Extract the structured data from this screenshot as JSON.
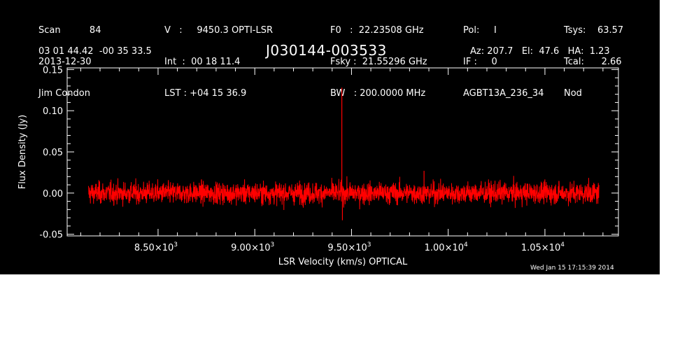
{
  "header": {
    "col1": [
      "Scan          84",
      "2013-12-30",
      "Jim Condon"
    ],
    "col2": [
      "V   :     9450.3 OPTI-LSR",
      "Int  :  00 18 11.4",
      "LST : +04 15 36.9"
    ],
    "col3": [
      "F0   :  22.23508 GHz",
      "Fsky :  21.55296 GHz",
      "BW   : 200.0000 MHz"
    ],
    "col4": [
      "Pol:     I",
      "IF :     0",
      "AGBT13A_236_34"
    ],
    "col5": [
      "Tsys:    63.57",
      "Tcal:      2.66",
      "Nod"
    ],
    "coords": "03 01 44.42  -00 35 33.5",
    "source": "J030144-003533",
    "azelha": "Az: 207.7   El:  47.6   HA:  1.23",
    "timestamp": "Wed Jan 15 17:15:39 2014"
  },
  "chart_data": {
    "type": "line",
    "xlabel": "LSR Velocity (km/s) OPTICAL",
    "ylabel": "Flux Density (Jy)",
    "xlim": [
      8030,
      10880
    ],
    "ylim": [
      -0.052,
      0.152
    ],
    "x_ticks": [
      8500,
      9000,
      9500,
      10000,
      10500
    ],
    "x_tick_labels": [
      {
        "m": "8.50×10",
        "e": "3"
      },
      {
        "m": "9.00×10",
        "e": "3"
      },
      {
        "m": "9.50×10",
        "e": "3"
      },
      {
        "m": "1.00×10",
        "e": "4"
      },
      {
        "m": "1.05×10",
        "e": "4"
      }
    ],
    "y_ticks": [
      -0.05,
      0.0,
      0.05,
      0.1,
      0.15
    ],
    "y_tick_labels": [
      "-0.05",
      "0.00",
      "0.05",
      "0.10",
      "0.15"
    ],
    "series": [
      {
        "color": "#ff0000",
        "x_range": [
          8140,
          10780
        ],
        "noise_rms": 0.0065,
        "features": [
          {
            "x": 9450,
            "y": 0.128
          },
          {
            "x": 9453,
            "y": -0.033
          },
          {
            "x": 9875,
            "y": 0.027
          }
        ]
      }
    ],
    "grid": false,
    "colors": {
      "background": "#000000",
      "axes": "#ffffff",
      "data": "#ff0000"
    }
  }
}
